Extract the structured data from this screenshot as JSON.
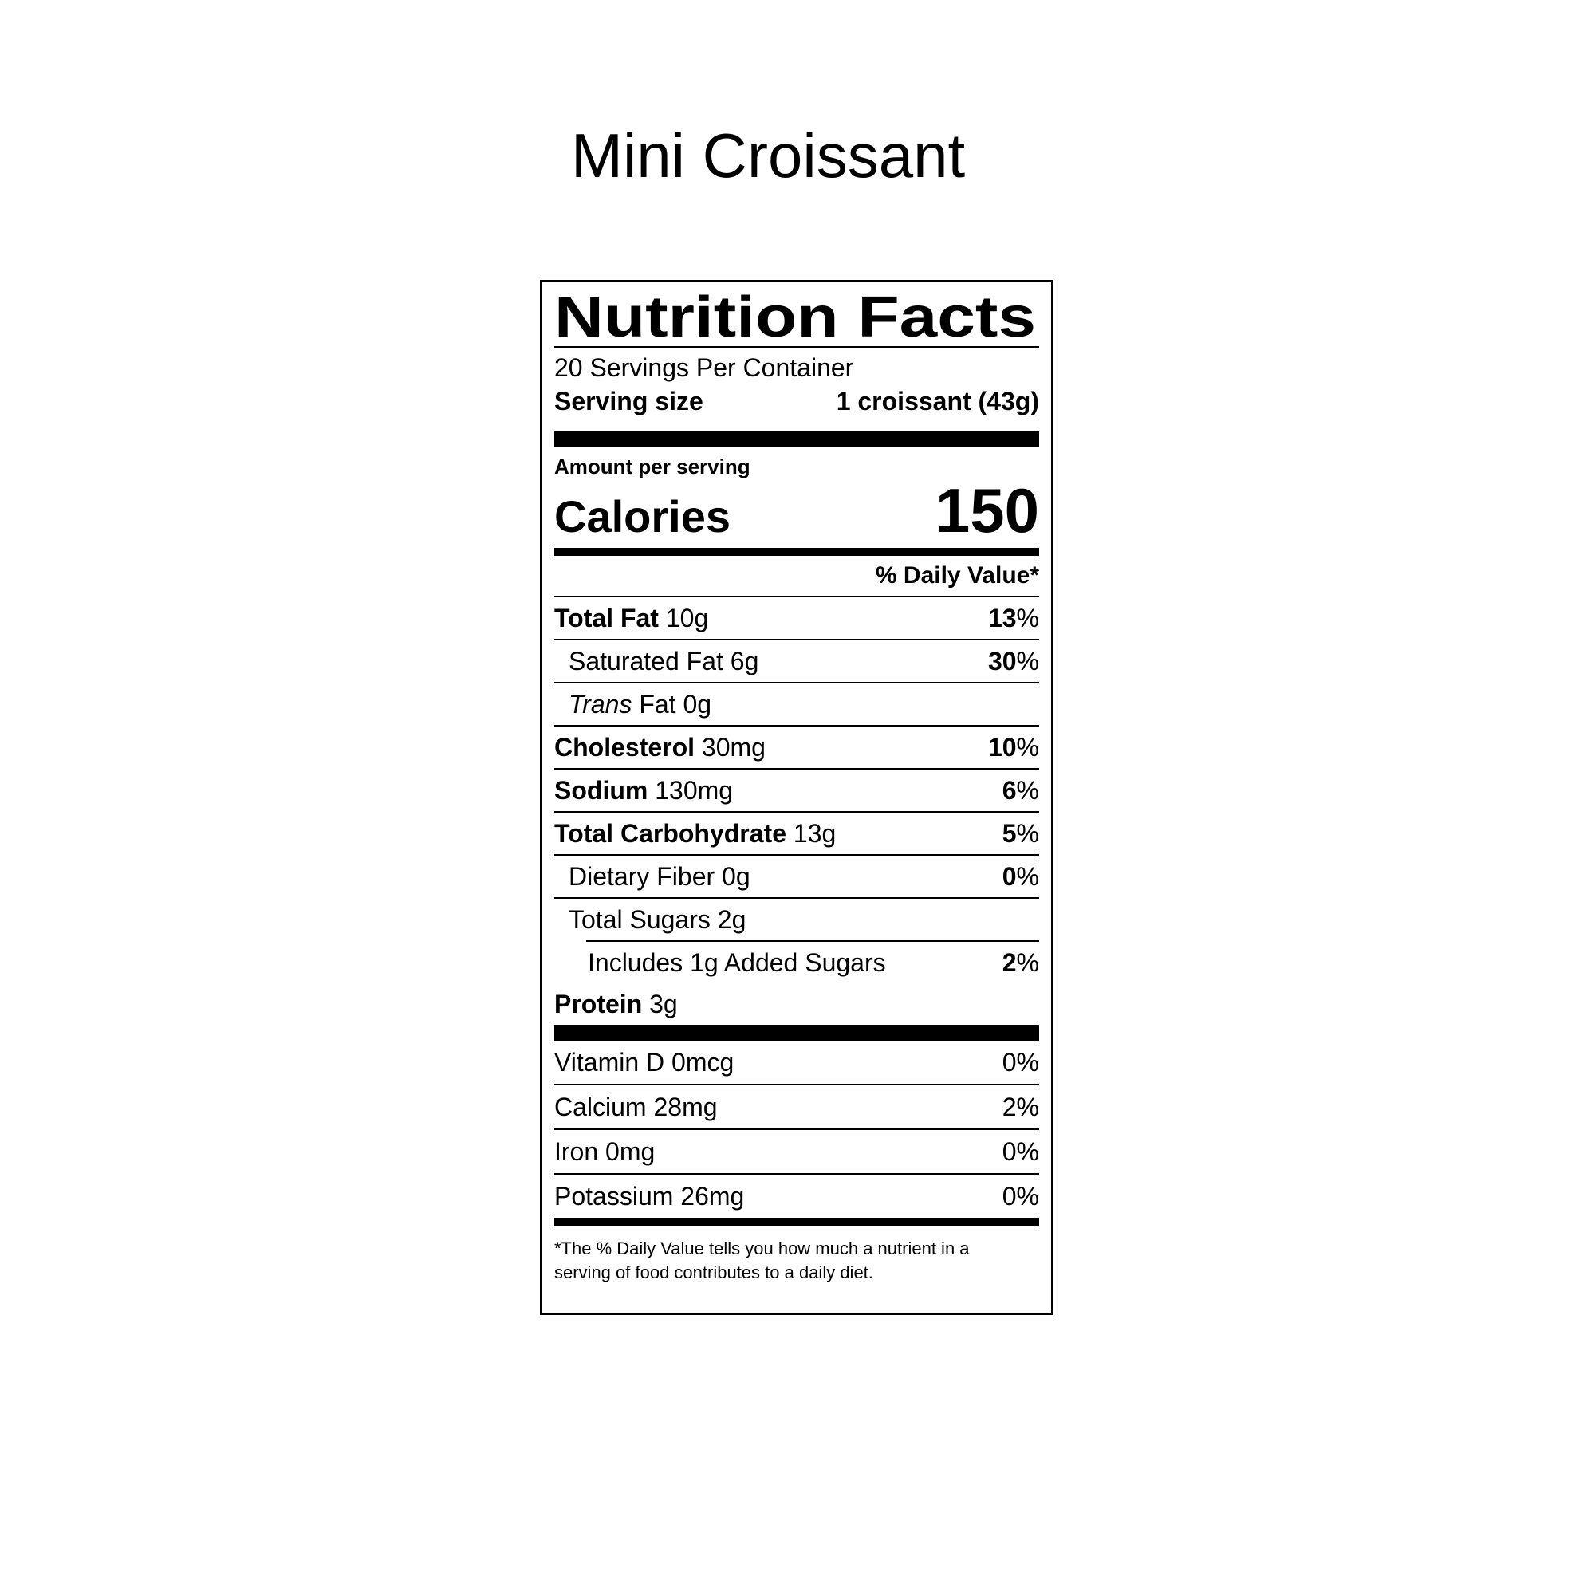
{
  "title": "Mini Croissant",
  "label": {
    "heading": "Nutrition Facts",
    "servings_per_container": "20 Servings Per Container",
    "serving_size": {
      "label": "Serving size",
      "value": "1 croissant (43g)"
    },
    "amount_per_serving": "Amount per serving",
    "calories": {
      "label": "Calories",
      "value": "150"
    },
    "daily_value_header": "% Daily Value*",
    "nutrients": [
      {
        "name": "Total Fat",
        "amount": "10g",
        "dv": "13",
        "pct": "%"
      },
      {
        "name": "Saturated Fat",
        "amount": "6g",
        "dv": "30",
        "pct": "%"
      },
      {
        "name_italic": "Trans",
        "name": "Fat",
        "amount": "0g",
        "dv": "",
        "pct": ""
      },
      {
        "name": "Cholesterol",
        "amount": "30mg",
        "dv": "10",
        "pct": "%"
      },
      {
        "name": "Sodium",
        "amount": "130mg",
        "dv": "6",
        "pct": "%"
      },
      {
        "name": "Total Carbohydrate",
        "amount": "13g",
        "dv": "5",
        "pct": "%"
      },
      {
        "name": "Dietary Fiber",
        "amount": "0g",
        "dv": "0",
        "pct": "%"
      },
      {
        "name": "Total Sugars",
        "amount": "2g",
        "dv": "",
        "pct": ""
      },
      {
        "name": "Includes 1g Added Sugars",
        "amount": "",
        "dv": "2",
        "pct": "%"
      },
      {
        "name": "Protein",
        "amount": "3g",
        "dv": "",
        "pct": ""
      }
    ],
    "micronutrients": [
      {
        "name": "Vitamin D",
        "amount": "0mcg",
        "dv": "0",
        "pct": "%"
      },
      {
        "name": "Calcium",
        "amount": "28mg",
        "dv": "2",
        "pct": "%"
      },
      {
        "name": "Iron",
        "amount": "0mg",
        "dv": "0",
        "pct": "%"
      },
      {
        "name": "Potassium",
        "amount": "26mg",
        "dv": "0",
        "pct": "%"
      }
    ],
    "footnote": "*The % Daily Value tells you how much a nutrient in a serving of food contributes to a daily diet."
  },
  "colors": {
    "ink": "#000000",
    "background": "#ffffff"
  }
}
